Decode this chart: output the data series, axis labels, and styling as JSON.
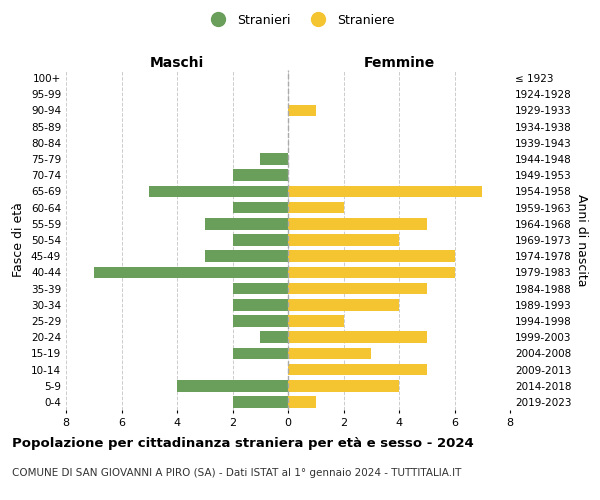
{
  "age_groups": [
    "100+",
    "95-99",
    "90-94",
    "85-89",
    "80-84",
    "75-79",
    "70-74",
    "65-69",
    "60-64",
    "55-59",
    "50-54",
    "45-49",
    "40-44",
    "35-39",
    "30-34",
    "25-29",
    "20-24",
    "15-19",
    "10-14",
    "5-9",
    "0-4"
  ],
  "birth_years": [
    "≤ 1923",
    "1924-1928",
    "1929-1933",
    "1934-1938",
    "1939-1943",
    "1944-1948",
    "1949-1953",
    "1954-1958",
    "1959-1963",
    "1964-1968",
    "1969-1973",
    "1974-1978",
    "1979-1983",
    "1984-1988",
    "1989-1993",
    "1994-1998",
    "1999-2003",
    "2004-2008",
    "2009-2013",
    "2014-2018",
    "2019-2023"
  ],
  "maschi": [
    0,
    0,
    0,
    0,
    0,
    1,
    2,
    5,
    2,
    3,
    2,
    3,
    7,
    2,
    2,
    2,
    1,
    2,
    0,
    4,
    2
  ],
  "femmine": [
    0,
    0,
    1,
    0,
    0,
    0,
    0,
    7,
    2,
    5,
    4,
    6,
    6,
    5,
    4,
    2,
    5,
    3,
    5,
    4,
    1
  ],
  "male_color": "#6a9e5b",
  "female_color": "#f5c431",
  "title": "Popolazione per cittadinanza straniera per età e sesso - 2024",
  "subtitle": "COMUNE DI SAN GIOVANNI A PIRO (SA) - Dati ISTAT al 1° gennaio 2024 - TUTTITALIA.IT",
  "xlabel_left": "Maschi",
  "xlabel_right": "Femmine",
  "ylabel_left": "Fasce di età",
  "ylabel_right": "Anni di nascita",
  "legend_male": "Stranieri",
  "legend_female": "Straniere",
  "xlim": 8,
  "background_color": "#ffffff",
  "grid_color": "#cccccc"
}
